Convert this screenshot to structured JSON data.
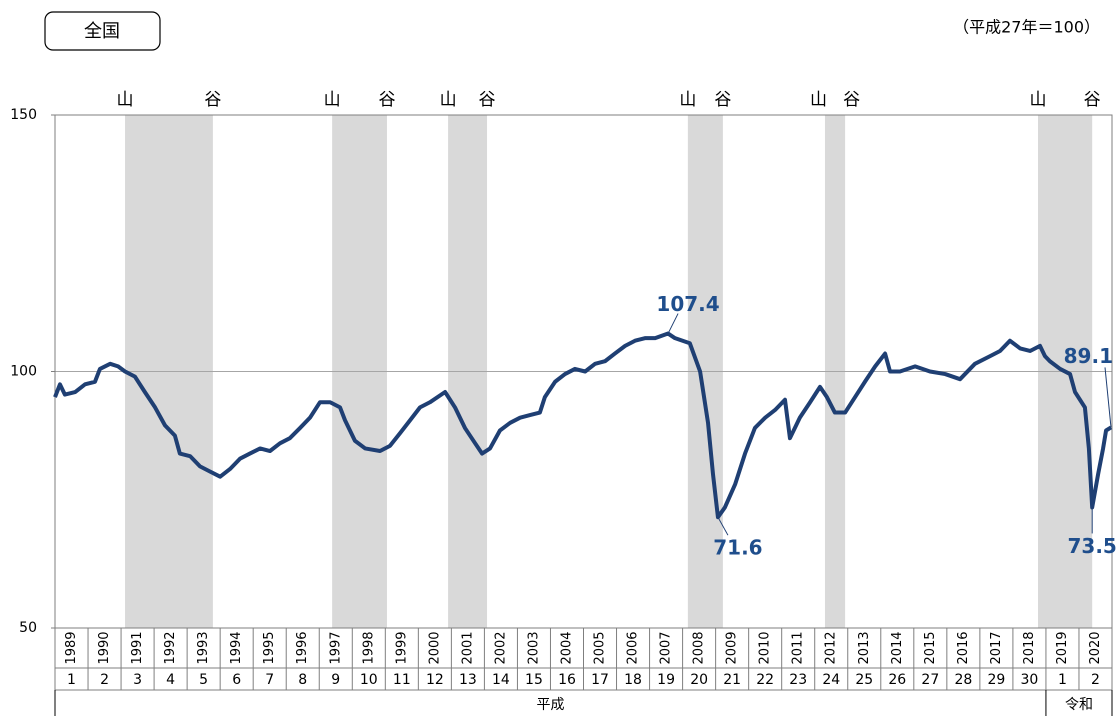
{
  "chart_data": {
    "type": "line",
    "title": "全国",
    "subtitle": "（平成27年＝100）",
    "xlim": [
      1989,
      2021
    ],
    "xticks": [
      1989,
      1990,
      1991,
      1992,
      1993,
      1994,
      1995,
      1996,
      1997,
      1998,
      1999,
      2000,
      2001,
      2002,
      2003,
      2004,
      2005,
      2006,
      2007,
      2008,
      2009,
      2010,
      2011,
      2012,
      2013,
      2014,
      2015,
      2016,
      2017,
      2018,
      2019,
      2020
    ],
    "era_years": [
      1,
      2,
      3,
      4,
      5,
      6,
      7,
      8,
      9,
      10,
      11,
      12,
      13,
      14,
      15,
      16,
      17,
      18,
      19,
      20,
      21,
      22,
      23,
      24,
      25,
      26,
      27,
      28,
      29,
      30,
      1,
      2
    ],
    "era_names": [
      "平成",
      "令和"
    ],
    "ylim": [
      50,
      150
    ],
    "yticks": [
      50,
      100,
      150
    ],
    "reference_line": 100,
    "shading": [
      {
        "start": 1991.12,
        "end": 1993.78,
        "peak_label": "山",
        "trough_label": "谷"
      },
      {
        "start": 1997.39,
        "end": 1999.05,
        "peak_label": "山",
        "trough_label": "谷"
      },
      {
        "start": 2000.9,
        "end": 2002.08,
        "peak_label": "山",
        "trough_label": "谷"
      },
      {
        "start": 2008.16,
        "end": 2009.22,
        "peak_label": "山",
        "trough_label": "谷"
      },
      {
        "start": 2012.31,
        "end": 2012.92,
        "peak_label": "山",
        "trough_label": "谷"
      },
      {
        "start": 2018.76,
        "end": 2020.4,
        "peak_label": "山",
        "trough_label": "谷"
      }
    ],
    "series": [
      {
        "color": "#1f3f73",
        "x": [
          1989.0,
          1989.15,
          1989.3,
          1989.61,
          1989.91,
          1990.21,
          1990.36,
          1990.67,
          1990.91,
          1991.12,
          1991.42,
          1991.72,
          1992.03,
          1992.33,
          1992.63,
          1992.78,
          1993.09,
          1993.39,
          1993.69,
          1994.0,
          1994.3,
          1994.6,
          1994.9,
          1995.21,
          1995.51,
          1995.81,
          1996.11,
          1996.42,
          1996.72,
          1997.02,
          1997.33,
          1997.63,
          1997.78,
          1998.08,
          1998.39,
          1998.84,
          1999.14,
          1999.45,
          1999.75,
          2000.05,
          2000.35,
          2000.81,
          2001.11,
          2001.41,
          2001.72,
          2001.93,
          2002.17,
          2002.47,
          2002.78,
          2003.08,
          2003.38,
          2003.68,
          2003.83,
          2004.14,
          2004.44,
          2004.74,
          2005.05,
          2005.35,
          2005.65,
          2005.95,
          2006.26,
          2006.56,
          2006.86,
          2007.17,
          2007.56,
          2007.77,
          2008.22,
          2008.53,
          2008.77,
          2008.92,
          2009.07,
          2009.28,
          2009.59,
          2009.89,
          2010.19,
          2010.5,
          2010.8,
          2011.1,
          2011.25,
          2011.55,
          2011.86,
          2012.16,
          2012.37,
          2012.61,
          2012.92,
          2013.22,
          2013.52,
          2013.83,
          2014.13,
          2014.28,
          2014.58,
          2015.04,
          2015.49,
          2015.95,
          2016.4,
          2016.85,
          2017.31,
          2017.61,
          2017.91,
          2018.22,
          2018.52,
          2018.82,
          2018.97,
          2019.12,
          2019.43,
          2019.73,
          2019.88,
          2020.18,
          2020.3,
          2020.4,
          2020.58,
          2020.73,
          2020.82,
          2020.97
        ],
        "values": [
          95,
          97.5,
          95.5,
          96,
          97.5,
          98,
          100.5,
          101.5,
          101,
          100,
          99,
          96,
          93,
          89.5,
          87.5,
          84,
          83.5,
          81.5,
          80.5,
          79.5,
          81,
          83,
          84,
          85,
          84.5,
          86,
          87,
          89,
          91,
          94,
          94,
          93,
          90.5,
          86.5,
          85,
          84.5,
          85.5,
          88,
          90.5,
          93,
          94,
          96,
          93,
          89,
          86,
          84,
          85,
          88.5,
          90,
          91,
          91.5,
          92,
          95,
          98,
          99.5,
          100.5,
          100,
          101.5,
          102,
          103.5,
          105,
          106,
          106.5,
          106.5,
          107.4,
          106.5,
          105.5,
          100,
          90,
          80,
          71.6,
          73.5,
          78,
          84,
          89,
          91,
          92.5,
          94.5,
          87,
          91,
          94,
          97,
          95,
          92,
          92,
          95,
          98,
          101,
          103.5,
          100,
          100,
          101,
          100,
          99.5,
          98.5,
          101.5,
          103,
          104,
          106,
          104.5,
          104,
          105,
          103,
          102,
          100.5,
          99.5,
          96,
          93,
          85,
          73.5,
          80,
          85,
          88.5,
          89.1
        ]
      }
    ],
    "annotations": [
      {
        "x": 2007.56,
        "value": 107.4
      },
      {
        "x": 2009.07,
        "value": 71.6
      },
      {
        "x": 2020.4,
        "value": 73.5
      },
      {
        "x": 2020.97,
        "value": 89.1
      }
    ]
  }
}
